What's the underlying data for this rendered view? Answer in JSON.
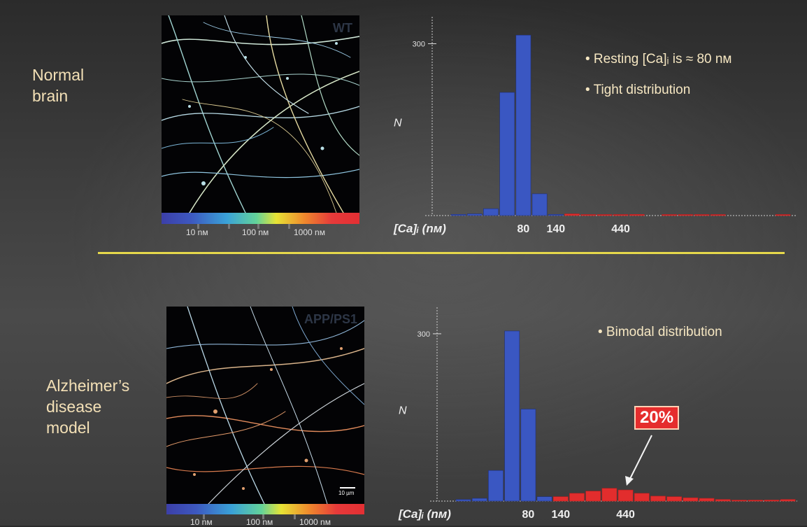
{
  "top_label": [
    "Normal",
    "brain"
  ],
  "bottom_label": [
    "Alzheimer’s",
    "disease",
    "model"
  ],
  "top_image": {
    "tag": "WT"
  },
  "bottom_image": {
    "tag": "APP/PS1",
    "scale_bar": "10 µm"
  },
  "colorbar": {
    "labels": [
      "10 nм",
      "100 nм",
      "1000 nм"
    ]
  },
  "bullets_top": [
    "• Resting [Ca]ᵢ is ≈ 80 nм",
    "• Tight distribution"
  ],
  "bullets_bottom": [
    "• Bimodal distribution"
  ],
  "callout": "20%",
  "colors": {
    "blue": "#3a57c2",
    "red": "#e22d2d",
    "accent_line": "#e6d84b",
    "text": "#f3e0b6"
  },
  "chart_data": [
    {
      "type": "bar",
      "ylabel": "N",
      "xlabel": "[Ca]ᵢ (nм)",
      "y_tick": 300,
      "ylim": [
        0,
        325
      ],
      "x_tick_labels": [
        "80",
        "140",
        "440"
      ],
      "x_tick_bins": [
        4,
        6,
        10
      ],
      "bin_count": 21,
      "threshold_bin": 7,
      "values": [
        2,
        3,
        12,
        215,
        315,
        38,
        2,
        3,
        1,
        1,
        1,
        2,
        0,
        1,
        1,
        1,
        1,
        0,
        0,
        0,
        1
      ]
    },
    {
      "type": "bar",
      "ylabel": "N",
      "xlabel": "[Ca]ᵢ (nм)",
      "y_tick": 300,
      "ylim": [
        0,
        325
      ],
      "x_tick_labels": [
        "80",
        "140",
        "440"
      ],
      "x_tick_bins": [
        4,
        6,
        10
      ],
      "bin_count": 21,
      "threshold_bin": 6,
      "values": [
        3,
        5,
        55,
        305,
        165,
        8,
        8,
        14,
        18,
        23,
        20,
        14,
        9,
        8,
        6,
        5,
        3,
        1,
        1,
        2,
        3
      ]
    }
  ]
}
